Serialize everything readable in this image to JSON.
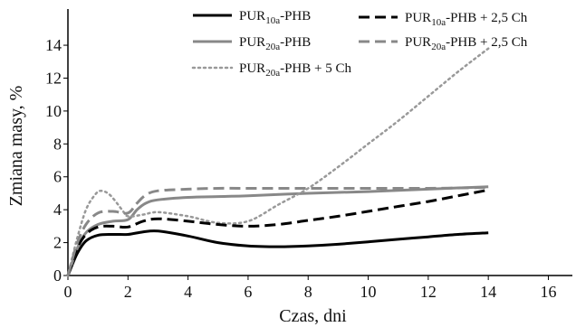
{
  "chart_data": {
    "type": "line",
    "xlabel": "Czas, dni",
    "ylabel": "Zmiana masy, %",
    "xlim": [
      0,
      16.8
    ],
    "ylim": [
      0,
      16.2
    ],
    "xticks": [
      0,
      2,
      4,
      6,
      8,
      10,
      12,
      14,
      16
    ],
    "yticks": [
      0,
      2,
      4,
      6,
      8,
      10,
      12,
      14
    ],
    "grid": false,
    "legend_position": "top",
    "series": [
      {
        "name_base": "PUR",
        "name_sub": "10a",
        "name_rest": "-PHB",
        "color": "#000000",
        "dash": "solid",
        "x": [
          0,
          0.3,
          0.6,
          1.0,
          1.5,
          2.0,
          2.5,
          3.0,
          4.0,
          5.0,
          6.0,
          7.0,
          8.0,
          9.0,
          10.0,
          11.0,
          12.0,
          13.0,
          14.0
        ],
        "y": [
          0,
          1.3,
          2.1,
          2.45,
          2.5,
          2.5,
          2.65,
          2.7,
          2.4,
          2.0,
          1.8,
          1.75,
          1.8,
          1.9,
          2.05,
          2.2,
          2.35,
          2.5,
          2.6
        ]
      },
      {
        "name_base": "PUR",
        "name_sub": "20a",
        "name_rest": "-PHB",
        "color": "#888888",
        "dash": "solid",
        "x": [
          0,
          0.3,
          0.6,
          1.0,
          1.5,
          2.0,
          2.3,
          2.6,
          3.0,
          4.0,
          5.0,
          6.0,
          8.0,
          10.0,
          12.0,
          14.0
        ],
        "y": [
          0,
          1.6,
          2.6,
          3.1,
          3.3,
          3.4,
          4.0,
          4.4,
          4.6,
          4.75,
          4.8,
          4.85,
          5.0,
          5.1,
          5.25,
          5.4
        ]
      },
      {
        "name_base": "PUR",
        "name_sub": "20a",
        "name_rest": "-PHB + 5 Ch",
        "color": "#999999",
        "dash": "dotted",
        "x": [
          0,
          0.3,
          0.6,
          0.9,
          1.1,
          1.4,
          1.8,
          2.0,
          2.5,
          3.0,
          4.0,
          5.0,
          6.0,
          7.0,
          8.0,
          9.0,
          10.0,
          11.0,
          12.0,
          13.0,
          14.0
        ],
        "y": [
          0,
          2.2,
          4.0,
          4.9,
          5.15,
          4.9,
          4.0,
          3.6,
          3.7,
          3.85,
          3.6,
          3.2,
          3.3,
          4.3,
          5.3,
          6.6,
          8.0,
          9.4,
          10.9,
          12.4,
          13.8
        ]
      },
      {
        "name_base": "PUR",
        "name_sub": "10a",
        "name_rest": "-PHB + 2,5 Ch",
        "color": "#000000",
        "dash": "dashed",
        "x": [
          0,
          0.3,
          0.6,
          1.0,
          1.5,
          2.0,
          2.5,
          3.0,
          4.0,
          5.0,
          6.0,
          7.0,
          8.0,
          9.0,
          10.0,
          11.0,
          12.0,
          13.0,
          14.0
        ],
        "y": [
          0,
          1.6,
          2.5,
          2.95,
          3.0,
          2.95,
          3.3,
          3.45,
          3.3,
          3.1,
          3.0,
          3.1,
          3.35,
          3.6,
          3.9,
          4.2,
          4.5,
          4.85,
          5.2
        ]
      },
      {
        "name_base": "PUR",
        "name_sub": "20a",
        "name_rest": "-PHB + 2,5 Ch",
        "color": "#888888",
        "dash": "dashed",
        "x": [
          0,
          0.3,
          0.6,
          1.0,
          1.5,
          2.0,
          2.3,
          2.6,
          3.0,
          4.0,
          5.0,
          6.0,
          8.0,
          10.0,
          12.0,
          14.0
        ],
        "y": [
          0,
          1.9,
          3.1,
          3.8,
          3.9,
          3.8,
          4.4,
          4.9,
          5.15,
          5.25,
          5.3,
          5.3,
          5.3,
          5.3,
          5.3,
          5.35
        ]
      }
    ]
  },
  "colors": {
    "axis": "#000000",
    "text": "#111111"
  }
}
